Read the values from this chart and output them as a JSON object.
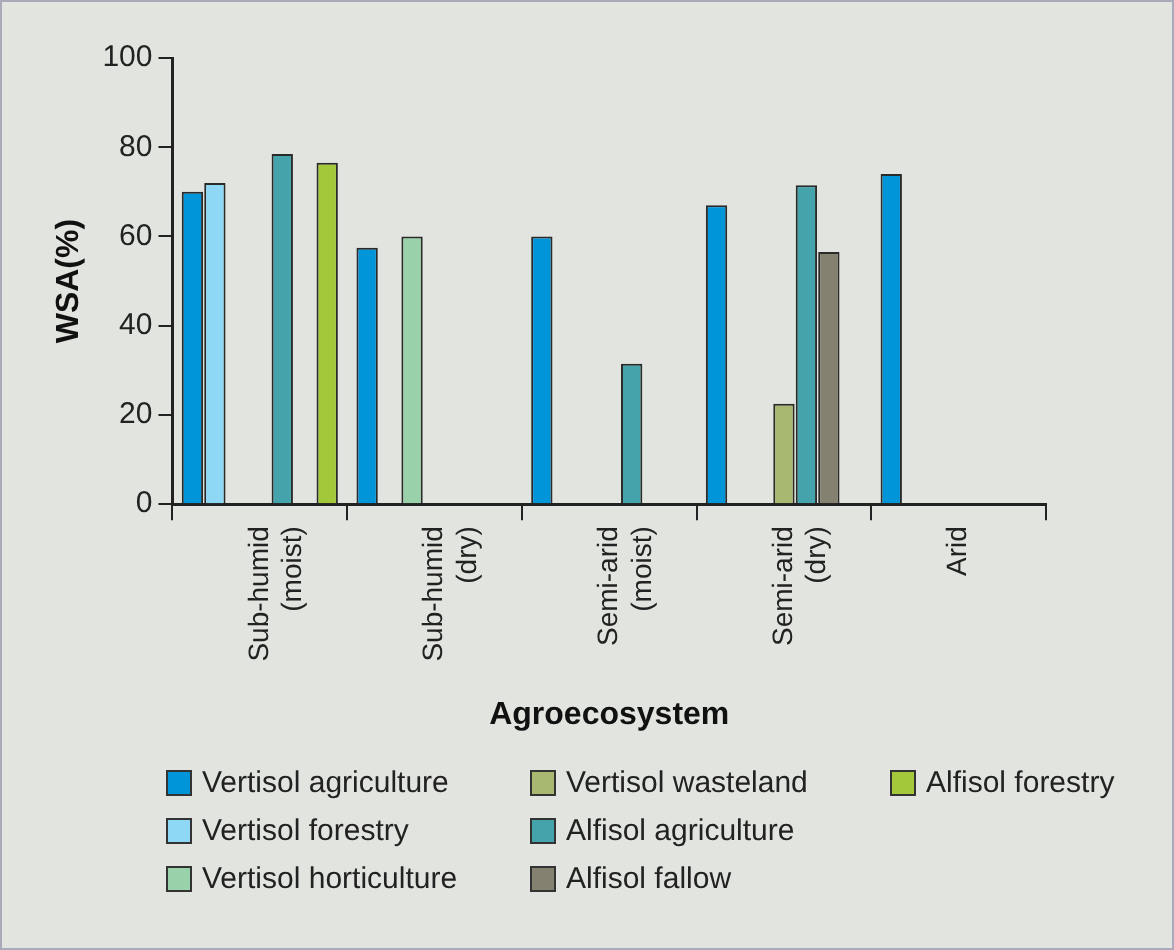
{
  "chart_data": {
    "type": "bar",
    "xlabel": "Agroecosystem",
    "ylabel": "WSA(%)",
    "categories": [
      "Sub-humid (moist)",
      "Sub-humid (dry)",
      "Semi-arid (moist)",
      "Semi-arid (dry)",
      "Arid"
    ],
    "series": [
      {
        "name": "Vertisol agriculture",
        "color": "#0095d9",
        "values": [
          70,
          57.5,
          60,
          67,
          74
        ]
      },
      {
        "name": "Vertisol forestry",
        "color": "#8fd8f5",
        "values": [
          72,
          null,
          null,
          null,
          null
        ]
      },
      {
        "name": "Vertisol horticulture",
        "color": "#99d1aa",
        "values": [
          null,
          60,
          null,
          null,
          null
        ]
      },
      {
        "name": "Vertisol wasteland",
        "color": "#a9b870",
        "values": [
          null,
          null,
          null,
          22.5,
          null
        ]
      },
      {
        "name": "Alfisol agriculture",
        "color": "#45a3ac",
        "values": [
          78.5,
          null,
          31.5,
          71.5,
          null
        ]
      },
      {
        "name": "Alfisol fallow",
        "color": "#858170",
        "values": [
          null,
          null,
          null,
          56.5,
          null
        ]
      },
      {
        "name": "Alfisol forestry",
        "color": "#a3c93a",
        "values": [
          76.5,
          null,
          null,
          null,
          null
        ]
      }
    ],
    "ylim": [
      0,
      100
    ],
    "yticks": [
      0,
      20,
      40,
      60,
      80,
      100
    ],
    "grid": false,
    "legend": "bottom"
  }
}
